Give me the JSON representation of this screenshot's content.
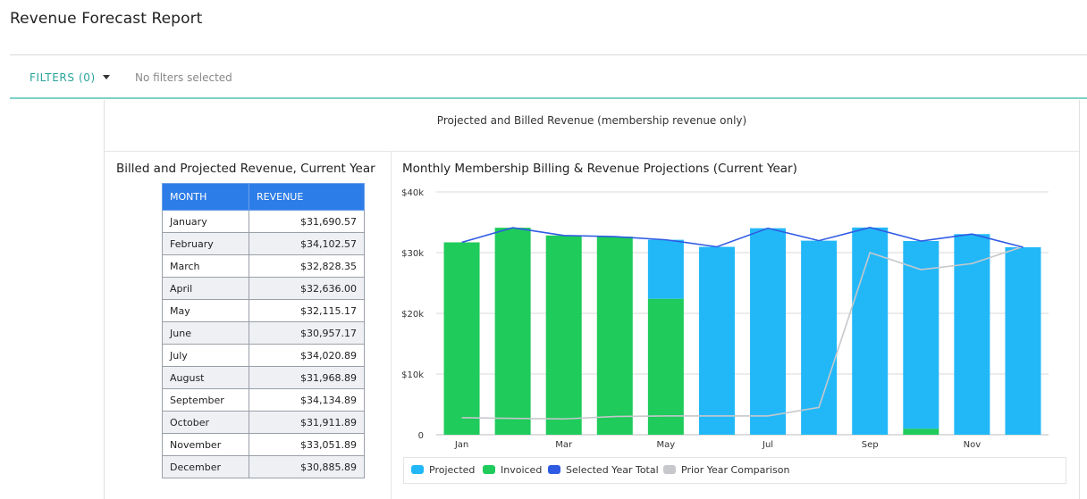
{
  "page": {
    "title": "Revenue Forecast Report"
  },
  "filters": {
    "label": "FILTERS (0)",
    "status": "No filters selected"
  },
  "section": {
    "title": "Projected and Billed Revenue (membership revenue only)"
  },
  "table": {
    "title": "Billed and Projected Revenue, Current Year",
    "headers": [
      "MONTH",
      "REVENUE"
    ],
    "rows": [
      [
        "January",
        "$31,690.57"
      ],
      [
        "February",
        "$34,102.57"
      ],
      [
        "March",
        "$32,828.35"
      ],
      [
        "April",
        "$32,636.00"
      ],
      [
        "May",
        "$32,115.17"
      ],
      [
        "June",
        "$30,957.17"
      ],
      [
        "July",
        "$34,020.89"
      ],
      [
        "August",
        "$31,968.89"
      ],
      [
        "September",
        "$34,134.89"
      ],
      [
        "October",
        "$31,911.89"
      ],
      [
        "November",
        "$33,051.89"
      ],
      [
        "December",
        "$30,885.89"
      ]
    ]
  },
  "chart": {
    "title": "Monthly Membership Billing & Revenue Projections (Current Year)",
    "legend": [
      "Projected",
      "Invoiced",
      "Selected Year Total",
      "Prior Year Comparison"
    ]
  },
  "colors": {
    "projected": "#22b8f8",
    "invoiced": "#1ecb5b",
    "selected_total": "#2f5be3",
    "prior_year": "#c6c8cc",
    "accent": "#27a39a",
    "table_header": "#2d7de8"
  },
  "chart_data": {
    "type": "bar",
    "categories": [
      "Jan",
      "Feb",
      "Mar",
      "Apr",
      "May",
      "Jun",
      "Jul",
      "Aug",
      "Sep",
      "Oct",
      "Nov",
      "Dec"
    ],
    "tick_labels": [
      "Jan",
      "Mar",
      "May",
      "Jul",
      "Sep",
      "Nov"
    ],
    "y_ticks": [
      "0",
      "$10k",
      "$20k",
      "$30k",
      "$40k"
    ],
    "ylim": [
      0,
      40000
    ],
    "stacked": true,
    "series": [
      {
        "name": "Invoiced",
        "kind": "bar",
        "values": [
          31690.57,
          34102.57,
          32828.35,
          32636.0,
          22400,
          0,
          0,
          0,
          0,
          1000,
          0,
          0
        ]
      },
      {
        "name": "Projected",
        "kind": "bar",
        "values": [
          0,
          0,
          0,
          0,
          9715.17,
          30957.17,
          34020.89,
          31968.89,
          34134.89,
          30911.89,
          33051.89,
          30885.89
        ]
      },
      {
        "name": "Selected Year Total",
        "kind": "line",
        "values": [
          31690.57,
          34102.57,
          32828.35,
          32636.0,
          32115.17,
          30957.17,
          34020.89,
          31968.89,
          34134.89,
          31911.89,
          33051.89,
          30885.89
        ]
      },
      {
        "name": "Prior Year Comparison",
        "kind": "line",
        "values": [
          2800,
          2700,
          2600,
          3000,
          3100,
          3100,
          3100,
          4500,
          30000,
          27200,
          28200,
          31000
        ]
      }
    ],
    "grid": true,
    "legend_position": "bottom"
  }
}
